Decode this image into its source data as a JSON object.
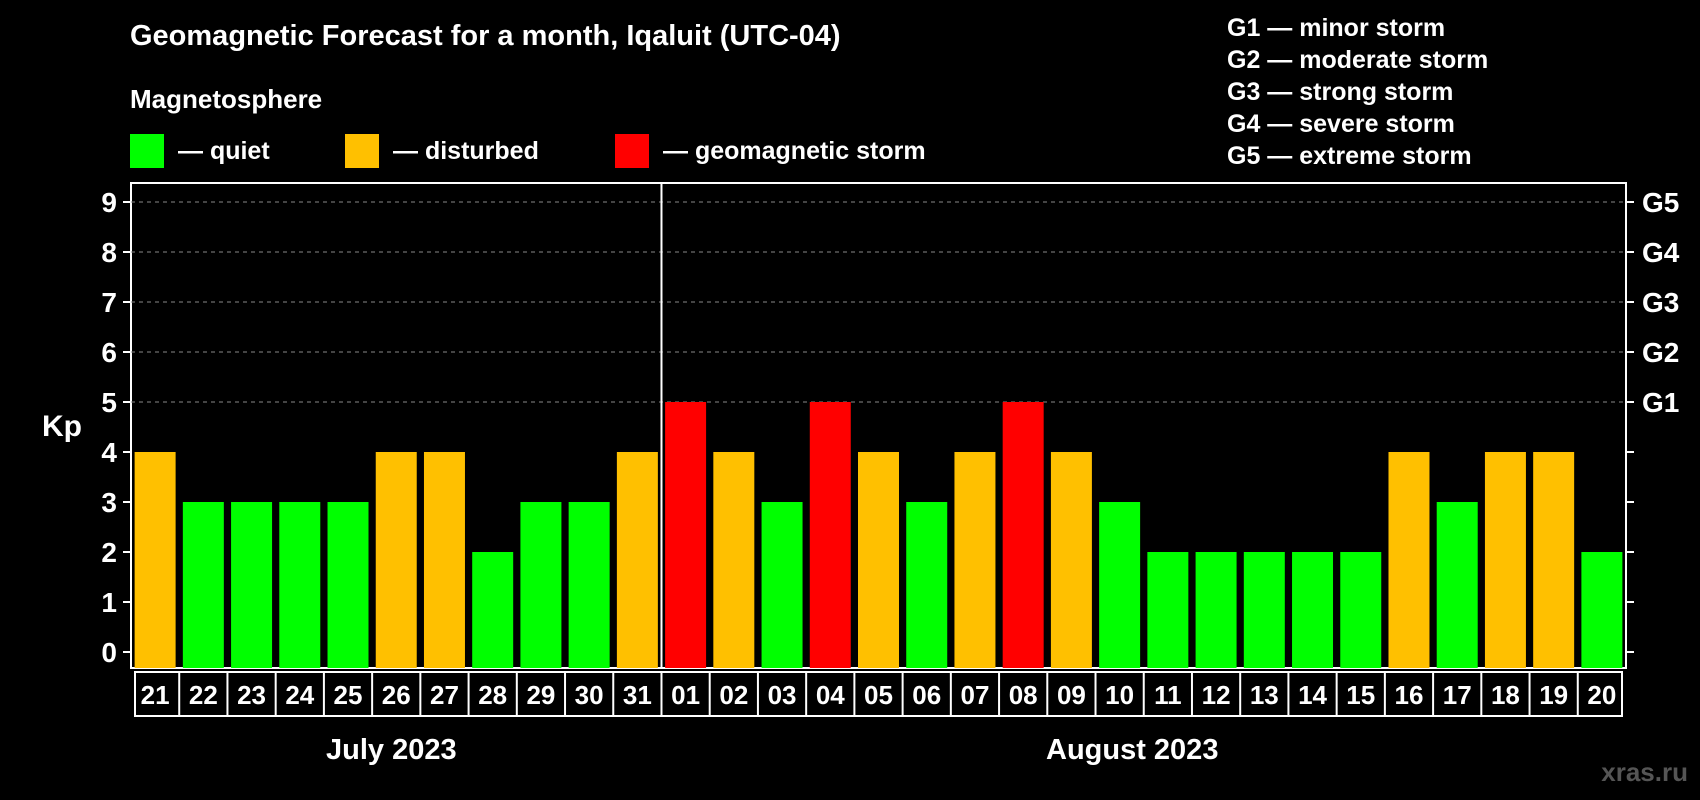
{
  "title": "Geomagnetic Forecast for a month, Iqaluit (UTC-04)",
  "legend": {
    "heading": "Magnetosphere",
    "items": [
      {
        "label": "— quiet",
        "color": "#00ff00"
      },
      {
        "label": "— disturbed",
        "color": "#ffc000"
      },
      {
        "label": "— geomagnetic storm",
        "color": "#ff0000"
      }
    ]
  },
  "storm_scale": [
    "G1 — minor storm",
    "G2 — moderate storm",
    "G3 — strong storm",
    "G4 — severe storm",
    "G5 — extreme storm"
  ],
  "months": [
    "July 2023",
    "August 2023"
  ],
  "watermark": "xras.ru",
  "colors": {
    "quiet": "#00ff00",
    "disturbed": "#ffc000",
    "storm": "#ff0000",
    "background": "#000000"
  },
  "chart_data": {
    "type": "bar",
    "ylabel": "Kp",
    "ylim": [
      0,
      9
    ],
    "yticks": [
      "0",
      "1",
      "2",
      "3",
      "4",
      "5",
      "6",
      "7",
      "8",
      "9"
    ],
    "right_ticks": [
      {
        "kp": 5,
        "label": "G1"
      },
      {
        "kp": 6,
        "label": "G2"
      },
      {
        "kp": 7,
        "label": "G3"
      },
      {
        "kp": 8,
        "label": "G4"
      },
      {
        "kp": 9,
        "label": "G5"
      }
    ],
    "grid": "dashed horizontal at Kp 5-9",
    "categories": [
      "21",
      "22",
      "23",
      "24",
      "25",
      "26",
      "27",
      "28",
      "29",
      "30",
      "31",
      "01",
      "02",
      "03",
      "04",
      "05",
      "06",
      "07",
      "08",
      "09",
      "10",
      "11",
      "12",
      "13",
      "14",
      "15",
      "16",
      "17",
      "18",
      "19",
      "20"
    ],
    "values": [
      4,
      3,
      3,
      3,
      3,
      4,
      4,
      2,
      3,
      3,
      4,
      5,
      4,
      3,
      5,
      4,
      3,
      4,
      5,
      4,
      3,
      2,
      2,
      2,
      2,
      2,
      4,
      3,
      4,
      4,
      2
    ],
    "month_boundary_after": "31"
  }
}
